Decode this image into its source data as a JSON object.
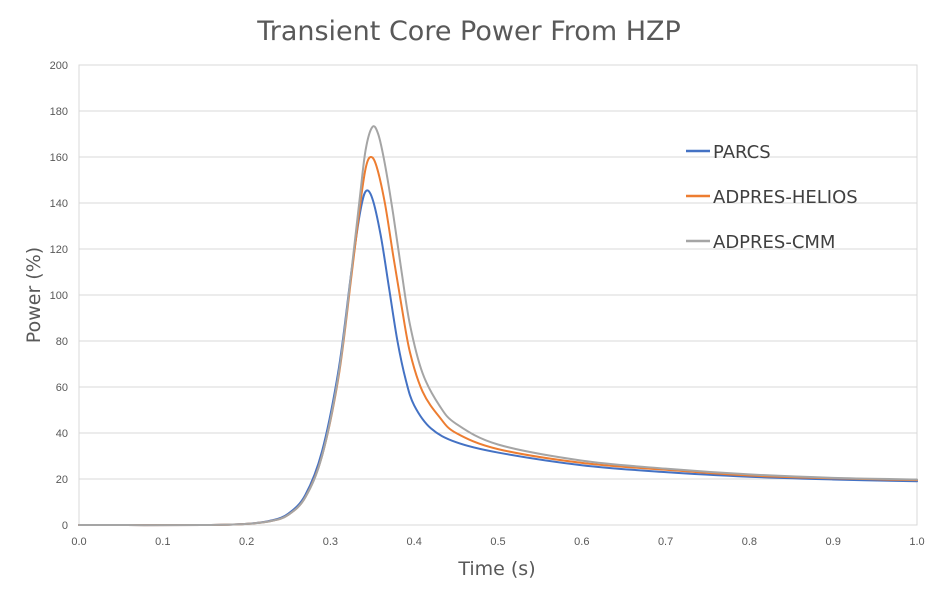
{
  "chart_data": {
    "type": "line",
    "title": "Transient Core Power From HZP",
    "xlabel": "Time (s)",
    "ylabel": "Power (%)",
    "xlim": [
      0.0,
      1.0
    ],
    "ylim": [
      0,
      200
    ],
    "x_ticks": [
      "0.0",
      "0.1",
      "0.2",
      "0.3",
      "0.4",
      "0.5",
      "0.6",
      "0.7",
      "0.8",
      "0.9",
      "1.0"
    ],
    "y_ticks": [
      "0",
      "20",
      "40",
      "60",
      "80",
      "100",
      "120",
      "140",
      "160",
      "180",
      "200"
    ],
    "grid": true,
    "legend_position": "right",
    "series": [
      {
        "name": "PARCS",
        "color": "#4472c4",
        "points": [
          [
            0.0,
            0
          ],
          [
            0.15,
            0
          ],
          [
            0.2,
            0.5
          ],
          [
            0.23,
            2
          ],
          [
            0.25,
            5
          ],
          [
            0.27,
            13
          ],
          [
            0.29,
            32
          ],
          [
            0.31,
            68
          ],
          [
            0.325,
            110
          ],
          [
            0.335,
            135
          ],
          [
            0.342,
            145
          ],
          [
            0.35,
            142
          ],
          [
            0.36,
            126
          ],
          [
            0.37,
            103
          ],
          [
            0.38,
            80
          ],
          [
            0.39,
            63
          ],
          [
            0.4,
            52
          ],
          [
            0.42,
            42
          ],
          [
            0.45,
            36
          ],
          [
            0.5,
            31.5
          ],
          [
            0.6,
            26
          ],
          [
            0.7,
            23
          ],
          [
            0.8,
            21
          ],
          [
            0.9,
            19.8
          ],
          [
            1.0,
            19
          ]
        ]
      },
      {
        "name": "ADPRES-HELIOS",
        "color": "#ed7d31",
        "points": [
          [
            0.0,
            0
          ],
          [
            0.15,
            0
          ],
          [
            0.2,
            0.5
          ],
          [
            0.23,
            1.8
          ],
          [
            0.25,
            4.5
          ],
          [
            0.27,
            12
          ],
          [
            0.29,
            30
          ],
          [
            0.31,
            65
          ],
          [
            0.325,
            108
          ],
          [
            0.335,
            138
          ],
          [
            0.342,
            155
          ],
          [
            0.348,
            160
          ],
          [
            0.355,
            156
          ],
          [
            0.365,
            140
          ],
          [
            0.375,
            117
          ],
          [
            0.385,
            95
          ],
          [
            0.395,
            75
          ],
          [
            0.41,
            58
          ],
          [
            0.43,
            47
          ],
          [
            0.45,
            40
          ],
          [
            0.5,
            33
          ],
          [
            0.6,
            27
          ],
          [
            0.7,
            24
          ],
          [
            0.8,
            21.5
          ],
          [
            0.9,
            20.3
          ],
          [
            1.0,
            19.5
          ]
        ]
      },
      {
        "name": "ADPRES-CMM",
        "color": "#a5a5a5",
        "points": [
          [
            0.0,
            0
          ],
          [
            0.15,
            0
          ],
          [
            0.2,
            0.5
          ],
          [
            0.23,
            1.8
          ],
          [
            0.25,
            4.5
          ],
          [
            0.27,
            12
          ],
          [
            0.29,
            30
          ],
          [
            0.31,
            66
          ],
          [
            0.325,
            110
          ],
          [
            0.335,
            142
          ],
          [
            0.342,
            163
          ],
          [
            0.35,
            173
          ],
          [
            0.357,
            170
          ],
          [
            0.365,
            157
          ],
          [
            0.375,
            135
          ],
          [
            0.385,
            110
          ],
          [
            0.395,
            87
          ],
          [
            0.41,
            66
          ],
          [
            0.43,
            52
          ],
          [
            0.45,
            44
          ],
          [
            0.5,
            35
          ],
          [
            0.6,
            28
          ],
          [
            0.7,
            24.5
          ],
          [
            0.8,
            22
          ],
          [
            0.9,
            20.5
          ],
          [
            1.0,
            19.8
          ]
        ]
      }
    ]
  }
}
